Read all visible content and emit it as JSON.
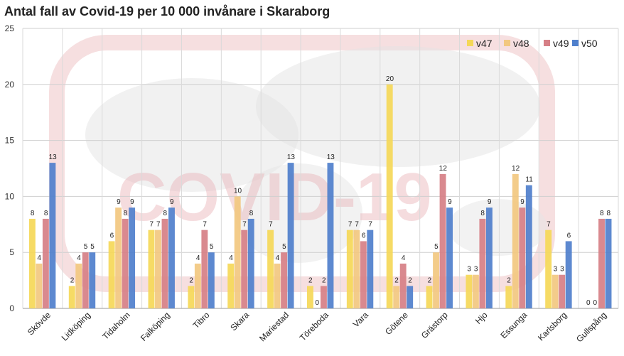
{
  "chart_data": {
    "type": "bar",
    "title": "Antal fall av Covid-19 per 10 000 invånare i Skaraborg",
    "xlabel": "",
    "ylabel": "",
    "ylim": [
      0,
      25
    ],
    "yticks": [
      0,
      5,
      10,
      15,
      20,
      25
    ],
    "grid": true,
    "legend_position": "top-right",
    "categories": [
      "Skövde",
      "Lidköping",
      "Tidaholm",
      "Falköping",
      "Tibro",
      "Skara",
      "Mariestad",
      "Töreboda",
      "Vara",
      "Götene",
      "Grästorp",
      "Hjo",
      "Essunga",
      "Karlsborg",
      "Gullspång"
    ],
    "series": [
      {
        "name": "v47",
        "color": "#f5d858",
        "values": [
          8,
          2,
          6,
          7,
          2,
          4,
          7,
          2,
          7,
          20,
          2,
          3,
          2,
          7,
          0
        ]
      },
      {
        "name": "v48",
        "color": "#f2c880",
        "values": [
          4,
          4,
          9,
          7,
          4,
          10,
          4,
          0,
          7,
          2,
          5,
          3,
          12,
          3,
          0
        ]
      },
      {
        "name": "v49",
        "color": "#d67f86",
        "values": [
          8,
          5,
          8,
          8,
          7,
          7,
          5,
          2,
          6,
          4,
          12,
          8,
          9,
          3,
          8
        ]
      },
      {
        "name": "v50",
        "color": "#4f7fcc",
        "values": [
          13,
          5,
          9,
          9,
          5,
          8,
          13,
          13,
          7,
          2,
          9,
          9,
          11,
          6,
          8
        ]
      }
    ]
  },
  "watermark": {
    "text": "COVID-19"
  }
}
